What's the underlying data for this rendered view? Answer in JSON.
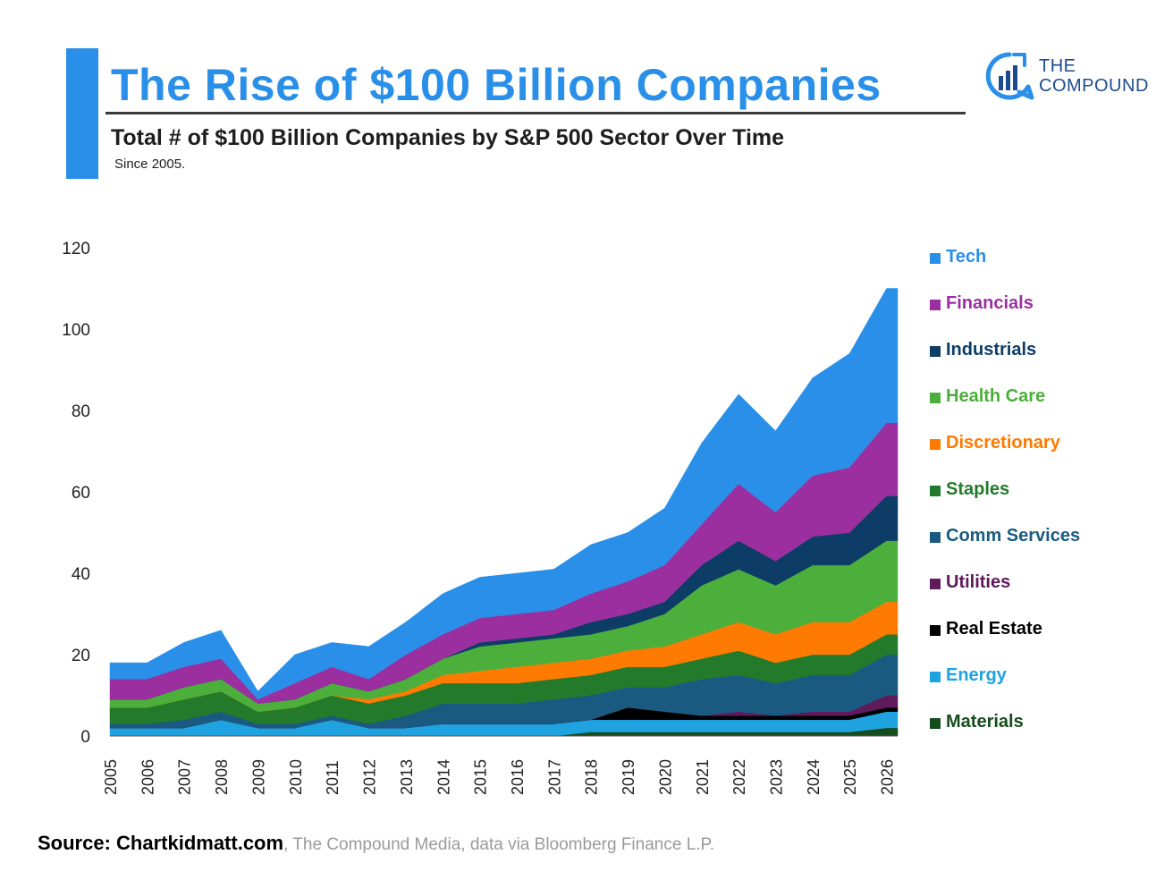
{
  "header": {
    "title": "The Rise of $100 Billion Companies",
    "subtitle": "Total # of $100 Billion Companies by S&P 500 Sector Over Time",
    "since": "Since 2005."
  },
  "brand": {
    "line1": "THE",
    "line2": "COMPOUND",
    "icon": "compound-logo-icon",
    "color": "#1d4b8f",
    "accent": "#2a8fe8"
  },
  "source": {
    "strong": "Source: Chartkidmatt.com",
    "rest": ", The Compound Media, data via Bloomberg Finance L.P."
  },
  "chart_data": {
    "type": "area",
    "title": "Total # of $100 Billion Companies by S&P 500 Sector Over Time",
    "xlabel": "",
    "ylabel": "",
    "ylim": [
      0,
      120
    ],
    "yticks": [
      0,
      20,
      40,
      60,
      80,
      100,
      120
    ],
    "grid": false,
    "legend_position": "right",
    "stacked": true,
    "x": [
      "2005",
      "2006",
      "2007",
      "2008",
      "2009",
      "2010",
      "2011",
      "2012",
      "2013",
      "2014",
      "2015",
      "2016",
      "2017",
      "2018",
      "2019",
      "2020",
      "2021",
      "2022",
      "2023",
      "2024",
      "2025",
      "2026"
    ],
    "series": [
      {
        "name": "Materials",
        "color": "#154d1c",
        "values": [
          0,
          0,
          0,
          0,
          0,
          0,
          0,
          0,
          0,
          0,
          0,
          0,
          0,
          1,
          1,
          1,
          1,
          1,
          1,
          1,
          1,
          2
        ]
      },
      {
        "name": "Energy",
        "color": "#1ea3e0",
        "values": [
          2,
          2,
          2,
          4,
          2,
          2,
          4,
          2,
          2,
          3,
          3,
          3,
          3,
          3,
          3,
          3,
          3,
          3,
          3,
          3,
          3,
          4
        ]
      },
      {
        "name": "Real Estate",
        "color": "#000000",
        "values": [
          0,
          0,
          0,
          0,
          0,
          0,
          0,
          0,
          0,
          0,
          0,
          0,
          0,
          0,
          3,
          2,
          1,
          1,
          1,
          1,
          1,
          1
        ]
      },
      {
        "name": "Utilities",
        "color": "#5e1a5a",
        "values": [
          0,
          0,
          0,
          0,
          0,
          0,
          0,
          0,
          0,
          0,
          0,
          0,
          0,
          0,
          0,
          0,
          0,
          1,
          0,
          1,
          1,
          3
        ]
      },
      {
        "name": "Comm Services",
        "color": "#1a5a80",
        "values": [
          1,
          1,
          2,
          2,
          1,
          1,
          1,
          1,
          3,
          5,
          5,
          5,
          6,
          6,
          5,
          6,
          9,
          9,
          8,
          9,
          9,
          10
        ]
      },
      {
        "name": "Staples",
        "color": "#237a2a",
        "values": [
          4,
          4,
          5,
          5,
          3,
          4,
          5,
          5,
          5,
          5,
          5,
          5,
          5,
          5,
          5,
          5,
          5,
          6,
          5,
          5,
          5,
          5
        ]
      },
      {
        "name": "Discretionary",
        "color": "#ff7a00",
        "values": [
          0,
          0,
          0,
          0,
          0,
          0,
          0,
          1,
          1,
          2,
          3,
          4,
          4,
          4,
          4,
          5,
          6,
          7,
          7,
          8,
          8,
          8
        ]
      },
      {
        "name": "Health Care",
        "color": "#4caf3c",
        "values": [
          2,
          2,
          3,
          3,
          2,
          2,
          3,
          2,
          3,
          4,
          6,
          6,
          6,
          6,
          6,
          8,
          12,
          13,
          12,
          14,
          14,
          15
        ]
      },
      {
        "name": "Industrials",
        "color": "#0d3d66",
        "values": [
          0,
          0,
          0,
          0,
          0,
          0,
          0,
          0,
          0,
          0,
          1,
          1,
          1,
          3,
          3,
          3,
          5,
          7,
          6,
          7,
          8,
          11
        ]
      },
      {
        "name": "Financials",
        "color": "#9b2fa0",
        "values": [
          5,
          5,
          5,
          5,
          1,
          4,
          4,
          3,
          6,
          6,
          6,
          6,
          6,
          7,
          8,
          9,
          10,
          14,
          12,
          15,
          16,
          18
        ]
      },
      {
        "name": "Tech",
        "color": "#2a8fe8",
        "values": [
          4,
          4,
          6,
          7,
          2,
          7,
          6,
          8,
          8,
          10,
          10,
          10,
          10,
          12,
          12,
          14,
          20,
          22,
          20,
          24,
          28,
          33
        ]
      }
    ],
    "legend_order": [
      "Tech",
      "Financials",
      "Industrials",
      "Health Care",
      "Discretionary",
      "Staples",
      "Comm Services",
      "Utilities",
      "Real Estate",
      "Energy",
      "Materials"
    ]
  }
}
